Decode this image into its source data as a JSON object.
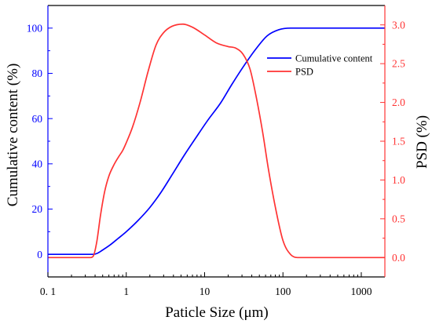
{
  "chart_data": {
    "type": "line",
    "xlabel": "Paticle Size (μm)",
    "ylabel": "Cumulative content (%)",
    "ylabel_right": "PSD (%)",
    "xscale": "log",
    "xlim": [
      0.1,
      2000
    ],
    "ylim": [
      -10,
      110
    ],
    "ylim_right": [
      -0.25,
      3.25
    ],
    "x_ticks": [
      0.1,
      1,
      10,
      100,
      1000
    ],
    "x_tick_labels": [
      "0. 1",
      "1",
      "10",
      "100",
      "1000"
    ],
    "y_ticks": [
      0,
      20,
      40,
      60,
      80,
      100
    ],
    "y_tick_labels": [
      "0",
      "20",
      "40",
      "60",
      "80",
      "100"
    ],
    "y_right_ticks": [
      0,
      0.5,
      1,
      1.5,
      2,
      2.5,
      3
    ],
    "y_right_tick_labels": [
      "0.0",
      "0.5",
      "1.0",
      "1.5",
      "2.0",
      "2.5",
      "3.0"
    ],
    "grid": false,
    "legend_position": "top-right",
    "axis_colors": {
      "x": "#000000",
      "left": "#0000ff",
      "right": "#ff3333"
    },
    "series": [
      {
        "name": "Cumulative content",
        "axis": "left",
        "color": "#0000ff",
        "points": [
          [
            0.1,
            0
          ],
          [
            0.3,
            0
          ],
          [
            0.38,
            0
          ],
          [
            0.43,
            0.5
          ],
          [
            0.49,
            1.7
          ],
          [
            0.62,
            4.1
          ],
          [
            0.78,
            6.9
          ],
          [
            1.0,
            10.0
          ],
          [
            1.4,
            14.8
          ],
          [
            2.0,
            20.7
          ],
          [
            2.8,
            27.6
          ],
          [
            3.9,
            35.5
          ],
          [
            5.5,
            43.8
          ],
          [
            7.8,
            51.7
          ],
          [
            11,
            59.3
          ],
          [
            16,
            66.9
          ],
          [
            22,
            74.8
          ],
          [
            31,
            82.8
          ],
          [
            45,
            90.7
          ],
          [
            63,
            96.6
          ],
          [
            89,
            99.3
          ],
          [
            126,
            100
          ],
          [
            2000,
            100
          ]
        ]
      },
      {
        "name": "PSD",
        "axis": "right",
        "color": "#ff3333",
        "points": [
          [
            0.1,
            0
          ],
          [
            0.35,
            0
          ],
          [
            0.38,
            0.02
          ],
          [
            0.42,
            0.2
          ],
          [
            0.47,
            0.55
          ],
          [
            0.53,
            0.85
          ],
          [
            0.6,
            1.05
          ],
          [
            0.7,
            1.2
          ],
          [
            0.8,
            1.3
          ],
          [
            0.9,
            1.38
          ],
          [
            1.0,
            1.48
          ],
          [
            1.2,
            1.68
          ],
          [
            1.5,
            2.0
          ],
          [
            1.9,
            2.4
          ],
          [
            2.4,
            2.74
          ],
          [
            3.0,
            2.9
          ],
          [
            3.8,
            2.98
          ],
          [
            5.3,
            3.01
          ],
          [
            7.0,
            2.97
          ],
          [
            10,
            2.87
          ],
          [
            14,
            2.77
          ],
          [
            20,
            2.72
          ],
          [
            25,
            2.7
          ],
          [
            31,
            2.62
          ],
          [
            38,
            2.43
          ],
          [
            45,
            2.1
          ],
          [
            55,
            1.62
          ],
          [
            65,
            1.15
          ],
          [
            80,
            0.65
          ],
          [
            100,
            0.22
          ],
          [
            125,
            0.04
          ],
          [
            160,
            0
          ],
          [
            2000,
            0
          ]
        ]
      }
    ]
  }
}
